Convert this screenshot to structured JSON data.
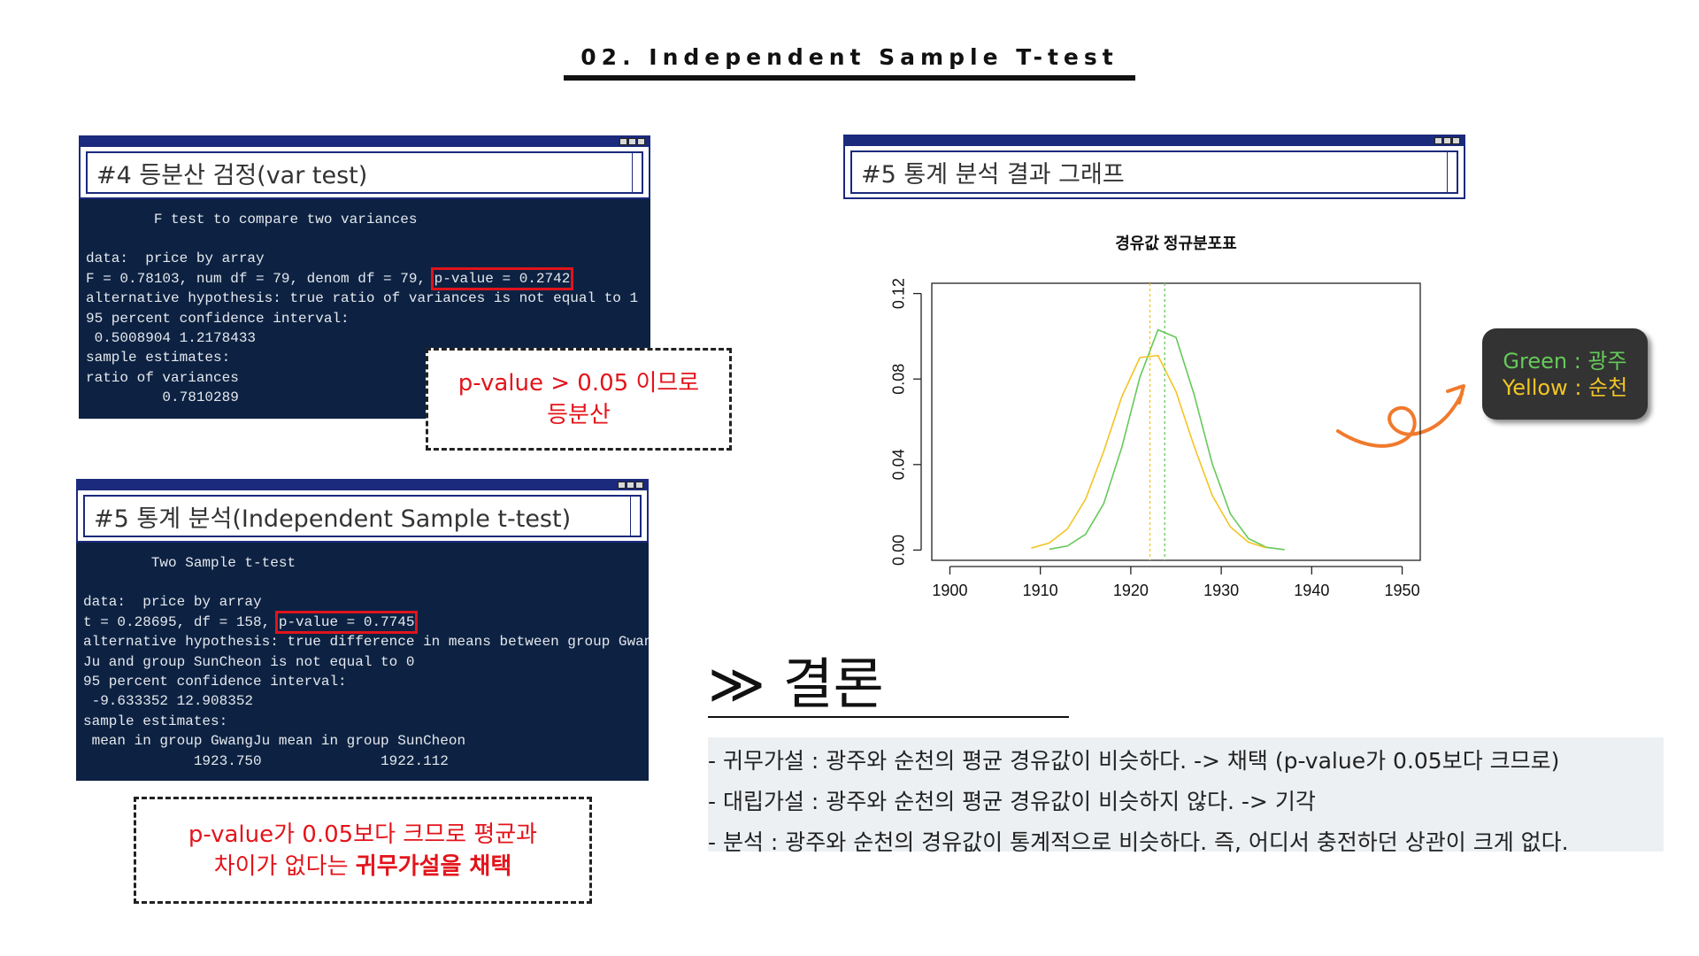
{
  "header": {
    "title": "02. Independent Sample T-test"
  },
  "var_test": {
    "title": "#4 등분산 검정(var test)",
    "lines": [
      "        F test to compare two variances",
      "data:  price by array",
      {
        "text": "F = 0.78103, num df = 79, denom df = 79, ",
        "boxed": "p-value = 0.2742"
      },
      "alternative hypothesis: true ratio of variances is not equal to 1",
      "95 percent confidence interval:",
      " 0.5008904 1.2178433",
      "sample estimates:",
      "ratio of variances",
      "         0.7810289"
    ]
  },
  "var_note": {
    "lines": [
      "p-value > 0.05 이므로",
      "등분산"
    ]
  },
  "t_test": {
    "title": "#5 통계 분석(Independent Sample t-test)",
    "lines": [
      "        Two Sample t-test",
      "data:  price by array",
      {
        "text": "t = 0.28695, df = 158, ",
        "boxed": "p-value = 0.7745"
      },
      "alternative hypothesis: true difference in means between group Gwang",
      "Ju and group SunCheon is not equal to 0",
      "95 percent confidence interval:",
      " -9.633352 12.908352",
      "sample estimates:",
      " mean in group GwangJu mean in group SunCheon",
      "             1923.750              1922.112"
    ]
  },
  "t_note": {
    "lines": [
      "p-value가 0.05보다 크므로 평균과",
      {
        "text": "차이가 없다는 ",
        "bold": "귀무가설을 채택"
      }
    ]
  },
  "graph_panel": {
    "title": "#5 통계 분석 결과 그래프"
  },
  "chart_data": {
    "type": "line",
    "title": "경유값 정규분포표",
    "x": [
      1909,
      1911,
      1913,
      1915,
      1917,
      1919,
      1921,
      1923,
      1925,
      1927,
      1929,
      1931,
      1933,
      1935,
      1937,
      1939
    ],
    "series": [
      {
        "name": "Green : 광주",
        "color": "#66c95a",
        "values": [
          null,
          0.0004,
          0.0019,
          0.0074,
          0.0216,
          0.048,
          0.0808,
          0.103,
          0.0995,
          0.0728,
          0.0404,
          0.017,
          0.0054,
          0.0013,
          0.0002,
          null
        ]
      },
      {
        "name": "Yellow : 순천",
        "color": "#f2c524",
        "values": [
          0.0009,
          0.0033,
          0.0099,
          0.0238,
          0.0461,
          0.0717,
          0.09,
          0.091,
          0.0741,
          0.0486,
          0.0256,
          0.0109,
          0.0037,
          0.001,
          null,
          null
        ]
      }
    ],
    "vlines": [
      {
        "value": 1923.75,
        "color": "#66c95a"
      },
      {
        "value": 1922.112,
        "color": "#f2c524"
      }
    ],
    "xlim": [
      1898,
      1952
    ],
    "xticks": [
      1900,
      1910,
      1920,
      1930,
      1940,
      1950
    ],
    "ylim": [
      -0.0048,
      0.1248
    ],
    "yticks": [
      {
        "value": 0,
        "label": "0.00"
      },
      {
        "value": 0.04,
        "label": "0.04"
      },
      {
        "value": 0.08,
        "label": "0.08"
      },
      {
        "value": 0.12,
        "label": "0.12"
      }
    ]
  },
  "conclusion": {
    "heading": "≫ 결론",
    "items": [
      "- 귀무가설 : 광주와 순천의 평균 경유값이 비슷하다. -> 채택 (p-value가 0.05보다 크므로)",
      "- 대립가설 : 광주와 순천의 평균 경유값이 비슷하지 않다. -> 기각",
      "- 분석 : 광주와 순천의 경유값이 통계적으로 비슷하다. 즉, 어디서 충전하던 상관이 크게 없다."
    ]
  }
}
